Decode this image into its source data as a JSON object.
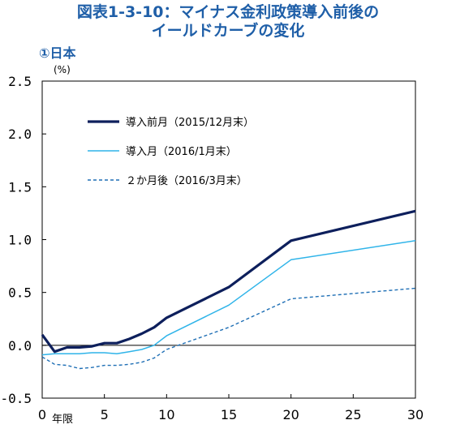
{
  "header": {
    "title_line1": "図表1-3-10：マイナス金利政策導入前後の",
    "title_line2": "イールドカーブの変化",
    "subtitle": "①日本",
    "unit": "(%)"
  },
  "chart_data": {
    "type": "line",
    "title": "図表1-3-10：マイナス金利政策導入前後のイールドカーブの変化",
    "subtitle": "①日本",
    "xlabel": "年限",
    "ylabel": "(%)",
    "xlim": [
      0,
      30
    ],
    "ylim": [
      -0.5,
      2.5
    ],
    "x_ticks": [
      "0",
      "5",
      "10",
      "15",
      "20",
      "30"
    ],
    "x_ticks_all": [
      0,
      5,
      10,
      15,
      20,
      25,
      30
    ],
    "x_tick_labels": [
      "0",
      "5",
      "10",
      "15",
      "20",
      "25",
      "30"
    ],
    "y_ticks": [
      -0.5,
      0.0,
      0.5,
      1.0,
      1.5,
      2.0,
      2.5
    ],
    "y_tick_labels": [
      "-0.5",
      "0.0",
      "0.5",
      "1.0",
      "1.5",
      "2.0",
      "2.5"
    ],
    "grid": false,
    "zero_line": true,
    "legend_position": "top-left",
    "series": [
      {
        "name": "導入前月（2015/12月末）",
        "color": "#0d1f5c",
        "style": "solid-thick",
        "x": [
          0,
          1,
          2,
          3,
          4,
          5,
          6,
          7,
          8,
          9,
          10,
          15,
          20,
          30
        ],
        "y": [
          0.1,
          -0.06,
          -0.02,
          -0.02,
          -0.01,
          0.02,
          0.02,
          0.06,
          0.11,
          0.17,
          0.26,
          0.55,
          0.99,
          1.27
        ]
      },
      {
        "name": "導入月（2016/1月末）",
        "color": "#2fb4e9",
        "style": "solid-thin",
        "x": [
          0,
          1,
          2,
          3,
          4,
          5,
          6,
          7,
          8,
          9,
          10,
          15,
          20,
          30
        ],
        "y": [
          -0.09,
          -0.08,
          -0.08,
          -0.08,
          -0.07,
          -0.07,
          -0.08,
          -0.06,
          -0.04,
          0.0,
          0.09,
          0.38,
          0.81,
          0.99
        ]
      },
      {
        "name": "２か月後（2016/3月末）",
        "color": "#1f6fb5",
        "style": "dashed",
        "x": [
          0,
          1,
          2,
          3,
          4,
          5,
          6,
          7,
          8,
          9,
          10,
          15,
          20,
          30
        ],
        "y": [
          -0.11,
          -0.18,
          -0.19,
          -0.22,
          -0.21,
          -0.19,
          -0.19,
          -0.18,
          -0.16,
          -0.12,
          -0.04,
          0.17,
          0.44,
          0.54
        ]
      }
    ]
  }
}
